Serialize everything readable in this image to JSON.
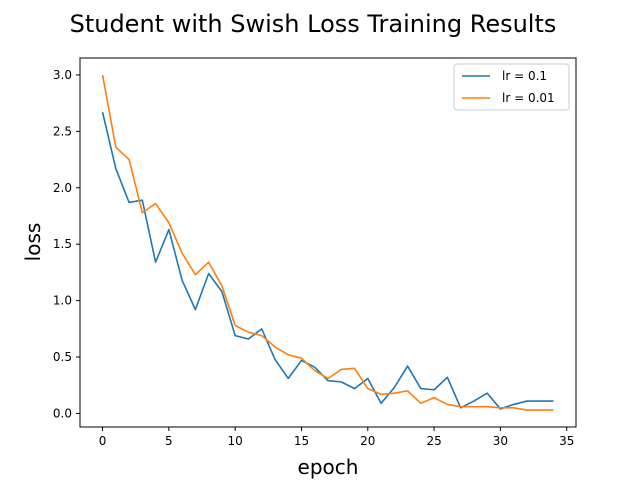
{
  "chart_data": {
    "type": "line",
    "title": "Student with Swish Loss Training Results",
    "xlabel": "epoch",
    "ylabel": "loss",
    "xlim": [
      -1.7,
      35.7
    ],
    "ylim": [
      -0.12,
      3.15
    ],
    "xticks": [
      0,
      5,
      10,
      15,
      20,
      25,
      30,
      35
    ],
    "yticks": [
      0.0,
      0.5,
      1.0,
      1.5,
      2.0,
      2.5,
      3.0
    ],
    "xtick_labels": [
      "0",
      "5",
      "10",
      "15",
      "20",
      "25",
      "30",
      "35"
    ],
    "ytick_labels": [
      "0.0",
      "0.5",
      "1.0",
      "1.5",
      "2.0",
      "2.5",
      "3.0"
    ],
    "grid": false,
    "legend_position": "top-right",
    "x": [
      0,
      1,
      2,
      3,
      4,
      5,
      6,
      7,
      8,
      9,
      10,
      11,
      12,
      13,
      14,
      15,
      16,
      17,
      18,
      19,
      20,
      21,
      22,
      23,
      24,
      25,
      26,
      27,
      28,
      29,
      30,
      31,
      32,
      33,
      34
    ],
    "series": [
      {
        "name": "lr = 0.1",
        "color": "#1f77b4",
        "values": [
          2.67,
          2.17,
          1.87,
          1.89,
          1.34,
          1.63,
          1.18,
          0.92,
          1.24,
          1.08,
          0.69,
          0.66,
          0.75,
          0.48,
          0.31,
          0.47,
          0.41,
          0.29,
          0.28,
          0.22,
          0.31,
          0.09,
          0.23,
          0.42,
          0.22,
          0.21,
          0.32,
          0.05,
          0.11,
          0.18,
          0.04,
          0.08,
          0.11,
          0.11,
          0.11
        ]
      },
      {
        "name": "lr = 0.01",
        "color": "#ff7f0e",
        "values": [
          3.0,
          2.36,
          2.25,
          1.78,
          1.86,
          1.69,
          1.42,
          1.23,
          1.34,
          1.13,
          0.78,
          0.72,
          0.69,
          0.59,
          0.52,
          0.49,
          0.38,
          0.31,
          0.39,
          0.4,
          0.22,
          0.17,
          0.18,
          0.2,
          0.09,
          0.14,
          0.08,
          0.06,
          0.06,
          0.06,
          0.05,
          0.05,
          0.03,
          0.03,
          0.03
        ]
      }
    ]
  }
}
